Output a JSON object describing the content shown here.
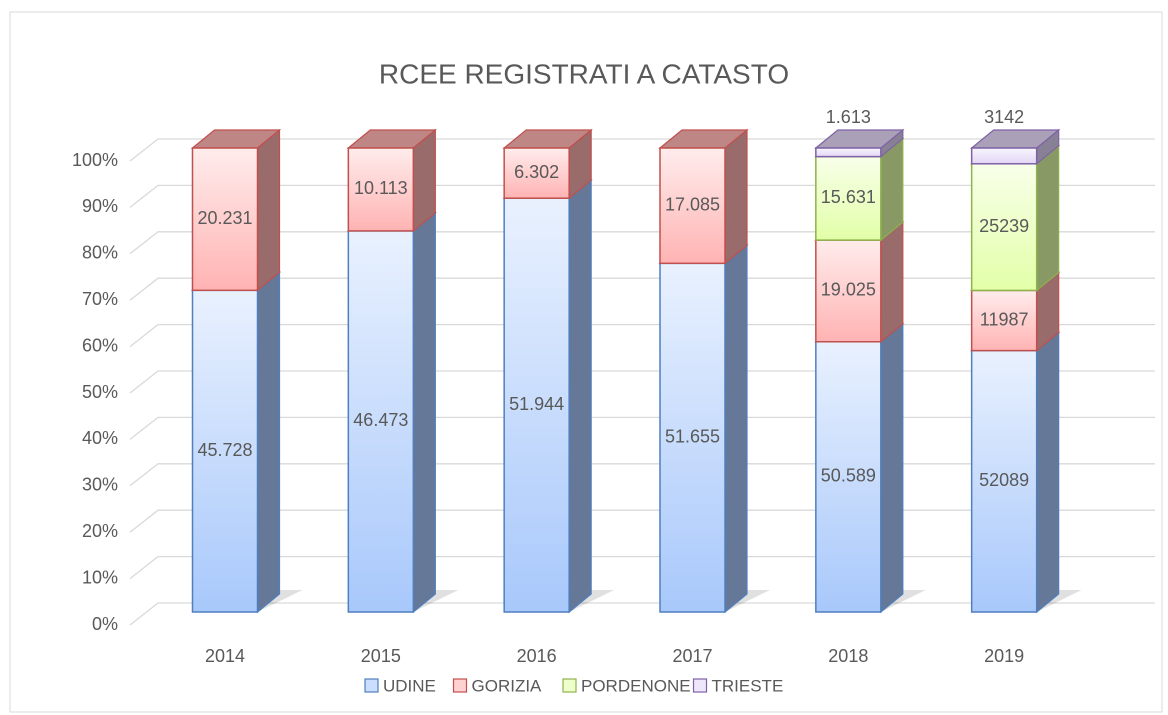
{
  "chart_data": {
    "type": "stacked_percent_bar_3d",
    "title": "RCEE REGISTRATI A CATASTO",
    "categories": [
      "2014",
      "2015",
      "2016",
      "2017",
      "2018",
      "2019"
    ],
    "series": [
      {
        "name": "UDINE",
        "color": "#a8c8fb",
        "stroke": "#4f7fbf",
        "values": [
          45728,
          46473,
          51944,
          51655,
          50589,
          52089
        ],
        "value_labels": [
          "45.728",
          "46.473",
          "51.944",
          "51.655",
          "50.589",
          null
        ]
      },
      {
        "name": "GORIZIA",
        "color": "#ffb3b3",
        "stroke": "#c0504d",
        "values": [
          20231,
          10113,
          6302,
          17085,
          19025,
          11987
        ],
        "value_labels": [
          "20.231",
          "10.113",
          "6.302",
          "17.085",
          "19.025",
          null
        ]
      },
      {
        "name": "PORDENONE",
        "color": "#e2ffa8",
        "stroke": "#8db34a",
        "values": [
          null,
          null,
          null,
          null,
          15631,
          25239
        ],
        "value_labels": [
          null,
          null,
          null,
          null,
          "15.631",
          null
        ]
      },
      {
        "name": "TRIESTE",
        "color": "#e3d6f6",
        "stroke": "#7f62a6",
        "values": [
          null,
          null,
          null,
          null,
          1613,
          3142
        ],
        "value_labels": [
          null,
          null,
          null,
          null,
          "1.613",
          null
        ]
      }
    ],
    "ylim": [
      0,
      100
    ],
    "yticks": [
      {
        "value": 0,
        "label": "0%"
      },
      {
        "value": 10,
        "label": "10%"
      },
      {
        "value": 20,
        "label": "20%"
      },
      {
        "value": 30,
        "label": "30%"
      },
      {
        "value": 40,
        "label": "40%"
      },
      {
        "value": 50,
        "label": "50%"
      },
      {
        "value": 60,
        "label": "60%"
      },
      {
        "value": 70,
        "label": "70%"
      },
      {
        "value": 80,
        "label": "80%"
      },
      {
        "value": 90,
        "label": "90%"
      },
      {
        "value": 100,
        "label": "100%"
      }
    ],
    "grid": true,
    "legend": "bottom"
  }
}
